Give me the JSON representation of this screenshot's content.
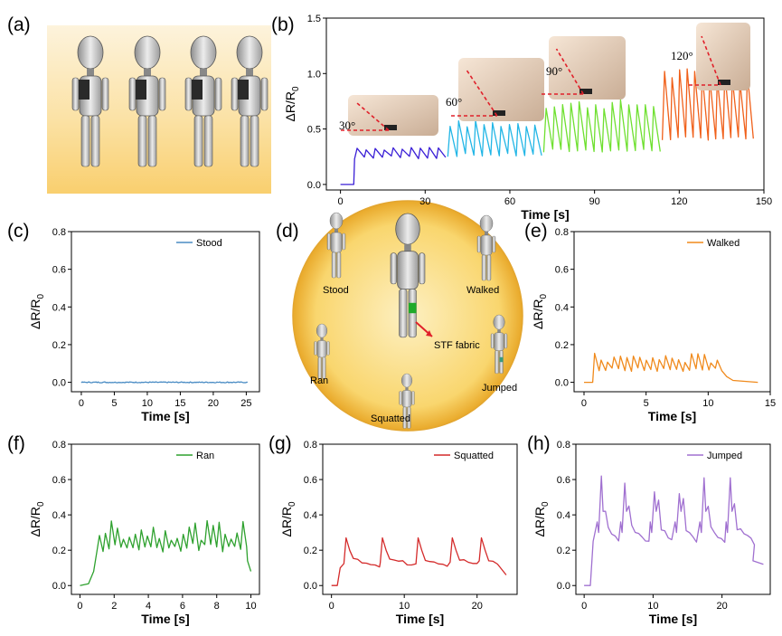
{
  "panel_labels": [
    "(a)",
    "(b)",
    "(c)",
    "(d)",
    "(e)",
    "(f)",
    "(g)",
    "(h)"
  ],
  "colors": {
    "b_30": "#3a1fd6",
    "b_60": "#22b6e6",
    "b_90": "#6fe030",
    "b_120": "#f0601a",
    "stood": "#4a8cc4",
    "walked": "#f08a1c",
    "ran": "#2ea12e",
    "squatted": "#d42a2a",
    "jumped": "#a070d0",
    "circle_fill": "#f7d679",
    "bg_gradient": "#fbd27a"
  },
  "diagram_d": {
    "labels": [
      "Stood",
      "Walked",
      "Ran",
      "Jumped",
      "Squatted",
      "STF fabric"
    ]
  },
  "chart_data": [
    {
      "id": "b",
      "type": "line",
      "title": "",
      "xlabel": "Time [s]",
      "ylabel": "ΔR/R",
      "ylabel_sub": "0",
      "xlim": [
        -5,
        150
      ],
      "ylim": [
        -0.05,
        1.5
      ],
      "xticks": [
        0,
        30,
        60,
        90,
        120,
        150
      ],
      "yticks": [
        0.0,
        0.5,
        1.0,
        1.5
      ],
      "xtick_labels": [
        "0",
        "30",
        "60",
        "90",
        "120",
        "150"
      ],
      "ytick_labels": [
        "0.0",
        "0.5",
        "1.0",
        "1.5"
      ],
      "angle_labels": [
        "30°",
        "60°",
        "90°",
        "120°"
      ],
      "series": [
        {
          "name": "30°",
          "segment": [
            0,
            38
          ],
          "baseline": 0.23,
          "peak": 0.33,
          "cycles": 10,
          "start": 5,
          "lead": 0.0
        },
        {
          "name": "60°",
          "segment": [
            38,
            72
          ],
          "baseline": 0.25,
          "peak": 0.55,
          "cycles": 11,
          "start": 40,
          "lead": 0.3
        },
        {
          "name": "90°",
          "segment": [
            72,
            114
          ],
          "baseline": 0.29,
          "peak": 0.73,
          "cycles": 14,
          "start": 72,
          "lead": 0.46
        },
        {
          "name": "120°",
          "segment": [
            114,
            147
          ],
          "baseline": 0.4,
          "peak": 1.0,
          "cycles": 12,
          "start": 114,
          "lead": 0.62
        }
      ]
    },
    {
      "id": "c",
      "type": "line",
      "legend": "Stood",
      "xlabel": "Time [s]",
      "ylabel": "ΔR/R",
      "ylabel_sub": "0",
      "xlim": [
        -1.5,
        27
      ],
      "ylim": [
        -0.05,
        0.8
      ],
      "xticks": [
        0,
        5,
        10,
        15,
        20,
        25
      ],
      "yticks": [
        0.0,
        0.2,
        0.4,
        0.6,
        0.8
      ],
      "xtick_labels": [
        "0",
        "5",
        "10",
        "15",
        "20",
        "25"
      ],
      "ytick_labels": [
        "0.0",
        "0.2",
        "0.4",
        "0.6",
        "0.8"
      ],
      "t_end": 25.3,
      "baseline": 0.0,
      "amp": 0.005
    },
    {
      "id": "e",
      "type": "line",
      "legend": "Walked",
      "xlabel": "Time [s]",
      "ylabel": "ΔR/R",
      "ylabel_sub": "0",
      "xlim": [
        -0.8,
        15
      ],
      "ylim": [
        -0.05,
        0.8
      ],
      "xticks": [
        0,
        5,
        10,
        15
      ],
      "yticks": [
        0.0,
        0.2,
        0.4,
        0.6,
        0.8
      ],
      "xtick_labels": [
        "0",
        "5",
        "10",
        "15"
      ],
      "ytick_labels": [
        "0.0",
        "0.2",
        "0.4",
        "0.6",
        "0.8"
      ],
      "t_end": 14,
      "start": 0.7,
      "end_active": 11.0,
      "baseline": 0.07,
      "peak": 0.13,
      "max_peak": 0.18,
      "period": 0.52
    },
    {
      "id": "f",
      "type": "line",
      "legend": "Ran",
      "xlabel": "Time [s]",
      "ylabel": "ΔR/R",
      "ylabel_sub": "0",
      "xlim": [
        -0.5,
        10.5
      ],
      "ylim": [
        -0.05,
        0.8
      ],
      "xticks": [
        0,
        2,
        4,
        6,
        8,
        10
      ],
      "yticks": [
        0.0,
        0.2,
        0.4,
        0.6,
        0.8
      ],
      "xtick_labels": [
        "0",
        "2",
        "4",
        "6",
        "8",
        "10"
      ],
      "ytick_labels": [
        "0.0",
        "0.2",
        "0.4",
        "0.6",
        "0.8"
      ],
      "t_end": 10,
      "start": 0.5,
      "end_active": 9.6,
      "baseline": 0.2,
      "peak": 0.32,
      "max_peak": 0.39,
      "period": 0.35
    },
    {
      "id": "g",
      "type": "line",
      "legend": "Squatted",
      "xlabel": "Time [s]",
      "ylabel": "ΔR/R",
      "ylabel_sub": "0",
      "xlim": [
        -1.2,
        25.5
      ],
      "ylim": [
        -0.05,
        0.8
      ],
      "xticks": [
        0,
        10,
        20
      ],
      "yticks": [
        0.0,
        0.2,
        0.4,
        0.6,
        0.8
      ],
      "xtick_labels": [
        "0",
        "10",
        "20"
      ],
      "ytick_labels": [
        "0.0",
        "0.2",
        "0.4",
        "0.6",
        "0.8"
      ],
      "t_end": 24,
      "peaks": [
        2.0,
        7.0,
        11.9,
        16.6,
        20.6
      ],
      "baseline": 0.1,
      "peak": 0.27
    },
    {
      "id": "h",
      "type": "line",
      "legend": "Jumped",
      "xlabel": "Time [s]",
      "ylabel": "ΔR/R",
      "ylabel_sub": "0",
      "xlim": [
        -1.2,
        27
      ],
      "ylim": [
        -0.05,
        0.8
      ],
      "xticks": [
        0,
        10,
        20
      ],
      "yticks": [
        0.0,
        0.2,
        0.4,
        0.6,
        0.8
      ],
      "xtick_labels": [
        "0",
        "10",
        "20"
      ],
      "ytick_labels": [
        "0.0",
        "0.2",
        "0.4",
        "0.6",
        "0.8"
      ],
      "t_end": 26,
      "peaks": [
        2.5,
        5.9,
        10.2,
        13.8,
        17.4,
        21.2
      ],
      "peak_vals": [
        0.62,
        0.58,
        0.53,
        0.52,
        0.61,
        0.61
      ],
      "baseline": 0.2
    }
  ]
}
